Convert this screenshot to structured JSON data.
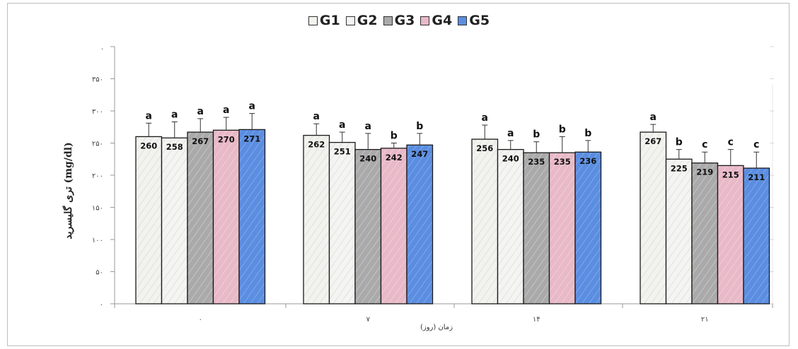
{
  "chart_data": {
    "type": "bar",
    "xlabel": "زمان (روز)",
    "ylabel": "تری گلیسرید (mg/dl)",
    "categories": [
      "۰",
      "۷",
      "۱۴",
      "۲۱"
    ],
    "ylim": [
      0,
      400
    ],
    "yticks": [
      0,
      50,
      100,
      150,
      200,
      250,
      300,
      350,
      400
    ],
    "ytick_labels": [
      "۰",
      "۵۰",
      "۱۰۰",
      "۱۵۰",
      "۲۰۰",
      "۲۵۰",
      "۳۰۰",
      "۳۵۰",
      "."
    ],
    "legend_position": "top-center",
    "grid": false,
    "series": [
      {
        "name": "G1",
        "color": "#f2f2ee",
        "values": [
          260,
          262,
          256,
          267
        ],
        "errors": [
          21,
          18,
          22,
          12
        ],
        "letters": [
          "a",
          "a",
          "a",
          "a"
        ]
      },
      {
        "name": "G2",
        "color": "#f4f4f2",
        "values": [
          258,
          251,
          240,
          225
        ],
        "errors": [
          25,
          16,
          14,
          15
        ],
        "letters": [
          "a",
          "a",
          "a",
          "b"
        ]
      },
      {
        "name": "G3",
        "color": "#aaaaaa",
        "values": [
          267,
          240,
          235,
          219
        ],
        "errors": [
          21,
          25,
          17,
          17
        ],
        "letters": [
          "a",
          "a",
          "b",
          "c"
        ]
      },
      {
        "name": "G4",
        "color": "#e8b9c8",
        "values": [
          270,
          242,
          235,
          215
        ],
        "errors": [
          20,
          8,
          25,
          25
        ],
        "letters": [
          "a",
          "b",
          "b",
          "c"
        ]
      },
      {
        "name": "G5",
        "color": "#5b8ee0",
        "values": [
          271,
          247,
          236,
          211
        ],
        "errors": [
          25,
          18,
          18,
          25
        ],
        "letters": [
          "a",
          "b",
          "b",
          "c"
        ]
      }
    ]
  }
}
